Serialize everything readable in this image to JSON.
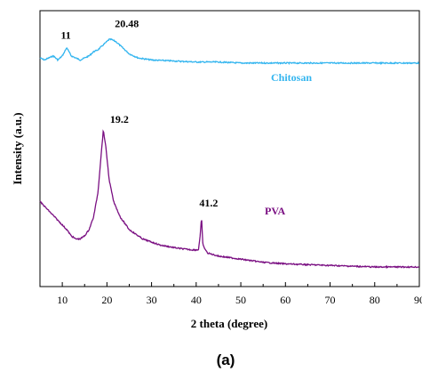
{
  "chart_data": {
    "type": "line",
    "xlabel": "2 theta (degree)",
    "ylabel": "Intensity (a.u.)",
    "panel_label": "(a)",
    "xlim": [
      5,
      90
    ],
    "x_ticks": [
      10,
      20,
      30,
      40,
      50,
      60,
      70,
      80,
      90
    ],
    "y_ticks_shown": false,
    "grid": false,
    "colors": {
      "chitosan": "#33b5ef",
      "pva": "#7a0f82"
    },
    "series": [
      {
        "name": "Chitosan",
        "color": "#33b5ef",
        "points": [
          [
            5,
            12
          ],
          [
            6,
            11
          ],
          [
            7,
            12
          ],
          [
            8,
            13
          ],
          [
            9,
            11
          ],
          [
            10,
            13
          ],
          [
            11,
            17
          ],
          [
            12,
            13
          ],
          [
            13,
            12
          ],
          [
            14,
            11
          ],
          [
            15,
            12
          ],
          [
            16,
            13
          ],
          [
            17,
            15
          ],
          [
            18,
            16
          ],
          [
            19,
            18
          ],
          [
            20,
            20
          ],
          [
            20.48,
            21
          ],
          [
            21,
            21
          ],
          [
            22,
            20
          ],
          [
            23,
            18
          ],
          [
            24,
            16
          ],
          [
            25,
            14
          ],
          [
            27,
            12
          ],
          [
            30,
            11
          ],
          [
            35,
            10.5
          ],
          [
            40,
            10
          ],
          [
            45,
            10
          ],
          [
            50,
            9.5
          ],
          [
            60,
            9.5
          ],
          [
            70,
            9.5
          ],
          [
            80,
            9.5
          ],
          [
            90,
            9.5
          ]
        ]
      },
      {
        "name": "PVA",
        "color": "#7a0f82",
        "points": [
          [
            5,
            30
          ],
          [
            7,
            27
          ],
          [
            9,
            24
          ],
          [
            11,
            21
          ],
          [
            12,
            19
          ],
          [
            13,
            18
          ],
          [
            14,
            18
          ],
          [
            15,
            19
          ],
          [
            16,
            21
          ],
          [
            17,
            25
          ],
          [
            18,
            33
          ],
          [
            18.7,
            45
          ],
          [
            19.2,
            53
          ],
          [
            19.8,
            47
          ],
          [
            20.5,
            37
          ],
          [
            21.5,
            30
          ],
          [
            23,
            25
          ],
          [
            25,
            21
          ],
          [
            28,
            18
          ],
          [
            32,
            16
          ],
          [
            36,
            15
          ],
          [
            39,
            14.5
          ],
          [
            40.5,
            14.5
          ],
          [
            40.9,
            19
          ],
          [
            41.2,
            25
          ],
          [
            41.5,
            16
          ],
          [
            42.5,
            13.5
          ],
          [
            45,
            12.5
          ],
          [
            50,
            11.5
          ],
          [
            55,
            10.5
          ],
          [
            60,
            10
          ],
          [
            70,
            9.5
          ],
          [
            80,
            9
          ],
          [
            90,
            9
          ]
        ]
      }
    ],
    "annotations": [
      {
        "text": "11",
        "x": 11,
        "series": "Chitosan"
      },
      {
        "text": "20.48",
        "x": 20.48,
        "series": "Chitosan"
      },
      {
        "text": "19.2",
        "x": 19.2,
        "series": "PVA"
      },
      {
        "text": "41.2",
        "x": 41.2,
        "series": "PVA"
      }
    ]
  }
}
